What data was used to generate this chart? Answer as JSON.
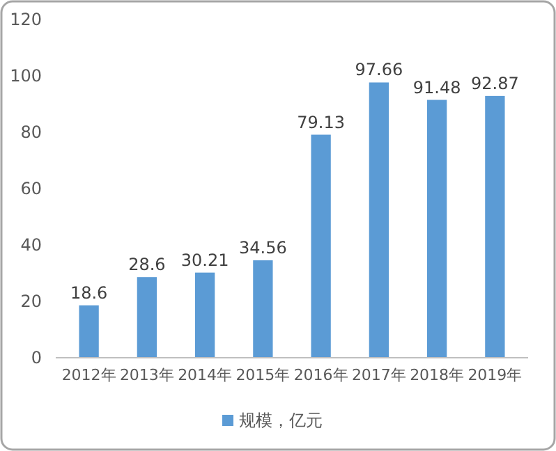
{
  "chart_data": {
    "type": "bar",
    "categories": [
      "2012年",
      "2013年",
      "2014年",
      "2015年",
      "2016年",
      "2017年",
      "2018年",
      "2019年"
    ],
    "series": [
      {
        "name": "规模，亿元",
        "color": "#5b9bd5",
        "values": [
          18.6,
          28.6,
          30.21,
          34.56,
          79.13,
          97.66,
          91.48,
          92.87
        ]
      }
    ],
    "ylim": [
      0,
      120
    ],
    "yticks": [
      0,
      20,
      40,
      60,
      80,
      100,
      120
    ],
    "grid": false,
    "legend": "bottom",
    "data_labels": true
  }
}
